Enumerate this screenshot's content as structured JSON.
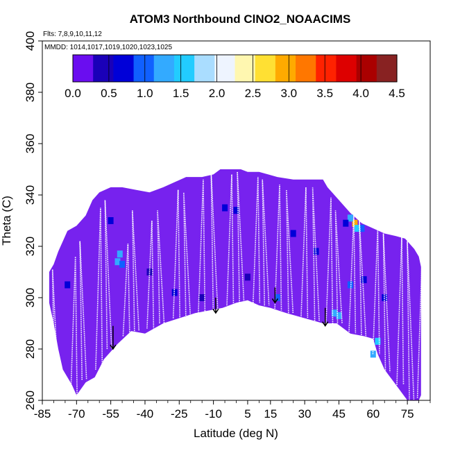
{
  "chart_data": {
    "type": "heatmap",
    "title": "ATOM3 Northbound ClNO2_NOAACIMS",
    "subtitle_flights": "Flts: 7,8,9,10,11,12",
    "subtitle_dates": "MMDD: 1014,1017,1019,1020,1023,1025",
    "xlabel": "Latitude (deg N)",
    "ylabel": "Theta (C)",
    "xlim": [
      -85,
      85
    ],
    "ylim": [
      260,
      400
    ],
    "x_ticks": [
      -85,
      -70,
      -55,
      -40,
      -25,
      -10,
      5,
      15,
      30,
      45,
      60,
      75
    ],
    "y_ticks": [
      260,
      280,
      300,
      320,
      340,
      360,
      380,
      400
    ],
    "colorbar": {
      "min": 0.0,
      "max": 4.5,
      "ticks": [
        "0.0",
        "0.5",
        "1.0",
        "1.5",
        "2.0",
        "2.5",
        "3.0",
        "3.5",
        "4.0",
        "4.5"
      ],
      "colors": [
        "#6a0df0",
        "#1a00b8",
        "#0000d8",
        "#1060ff",
        "#33aaff",
        "#22ccff",
        "#aaddff",
        "#eef4ff",
        "#fff7b0",
        "#ffe033",
        "#ffaa00",
        "#ff7700",
        "#ff2200",
        "#dd0000",
        "#aa0000",
        "#882222"
      ]
    },
    "base_color": "#7722ee",
    "coverage_top": [
      [
        -82,
        310
      ],
      [
        -80,
        313
      ],
      [
        -78,
        318
      ],
      [
        -76,
        322
      ],
      [
        -74,
        326
      ],
      [
        -70,
        328
      ],
      [
        -66,
        332
      ],
      [
        -63,
        338
      ],
      [
        -60,
        341
      ],
      [
        -55,
        343
      ],
      [
        -50,
        343
      ],
      [
        -44,
        342
      ],
      [
        -38,
        341
      ],
      [
        -32,
        343
      ],
      [
        -27,
        345
      ],
      [
        -22,
        347
      ],
      [
        -15,
        347
      ],
      [
        -10,
        348
      ],
      [
        -7,
        350
      ],
      [
        -2,
        350
      ],
      [
        2,
        350
      ],
      [
        5,
        349
      ],
      [
        10,
        349
      ],
      [
        14,
        348
      ],
      [
        18,
        347
      ],
      [
        25,
        346
      ],
      [
        32,
        346
      ],
      [
        38,
        346
      ],
      [
        40,
        343
      ],
      [
        45,
        338
      ],
      [
        50,
        333
      ],
      [
        55,
        329
      ],
      [
        60,
        327
      ],
      [
        65,
        325
      ],
      [
        70,
        324
      ],
      [
        74,
        323
      ],
      [
        78,
        319
      ],
      [
        80,
        316
      ],
      [
        81,
        312
      ]
    ],
    "coverage_bottom": [
      [
        -82,
        298
      ],
      [
        -80,
        290
      ],
      [
        -78,
        280
      ],
      [
        -76,
        272
      ],
      [
        -72,
        266
      ],
      [
        -70,
        262
      ],
      [
        -66,
        267
      ],
      [
        -62,
        269
      ],
      [
        -58,
        276
      ],
      [
        -52,
        282
      ],
      [
        -46,
        287
      ],
      [
        -40,
        286
      ],
      [
        -32,
        290
      ],
      [
        -25,
        292
      ],
      [
        -18,
        294
      ],
      [
        -12,
        295
      ],
      [
        -6,
        296
      ],
      [
        0,
        298
      ],
      [
        5,
        299
      ],
      [
        10,
        297
      ],
      [
        15,
        296
      ],
      [
        22,
        294
      ],
      [
        30,
        292
      ],
      [
        38,
        290
      ],
      [
        44,
        290
      ],
      [
        50,
        286
      ],
      [
        56,
        285
      ],
      [
        60,
        284
      ],
      [
        62,
        278
      ],
      [
        65,
        272
      ],
      [
        70,
        266
      ],
      [
        75,
        260
      ],
      [
        80,
        260
      ],
      [
        81,
        262
      ]
    ],
    "hotspots": [
      {
        "lat": 52,
        "theta": 329,
        "value": 3.0
      },
      {
        "lat": 53,
        "theta": 327,
        "value": 1.5
      },
      {
        "lat": 50,
        "theta": 331,
        "value": 1.2
      },
      {
        "lat": 48,
        "theta": 329,
        "value": 0.8
      },
      {
        "lat": 55,
        "theta": 327,
        "value": 1.0
      },
      {
        "lat": 62,
        "theta": 283,
        "value": 1.6
      },
      {
        "lat": 60,
        "theta": 278,
        "value": 1.4
      },
      {
        "lat": 43,
        "theta": 294,
        "value": 1.3
      },
      {
        "lat": 45,
        "theta": 293,
        "value": 1.2
      },
      {
        "lat": -51,
        "theta": 317,
        "value": 1.4
      },
      {
        "lat": -52,
        "theta": 314,
        "value": 1.2
      },
      {
        "lat": -50,
        "theta": 313,
        "value": 0.9
      },
      {
        "lat": 50,
        "theta": 305,
        "value": 1.0
      },
      {
        "lat": 56,
        "theta": 307,
        "value": 0.8
      },
      {
        "lat": 18,
        "theta": 300,
        "value": 1.0
      },
      {
        "lat": -27,
        "theta": 302,
        "value": 0.7
      },
      {
        "lat": -5,
        "theta": 335,
        "value": 0.6
      },
      {
        "lat": 0,
        "theta": 334,
        "value": 0.7
      },
      {
        "lat": -55,
        "theta": 330,
        "value": 0.7
      },
      {
        "lat": -74,
        "theta": 305,
        "value": 0.7
      },
      {
        "lat": 35,
        "theta": 318,
        "value": 0.6
      },
      {
        "lat": 65,
        "theta": 300,
        "value": 0.6
      },
      {
        "lat": -38,
        "theta": 310,
        "value": 0.5
      },
      {
        "lat": 25,
        "theta": 325,
        "value": 0.6
      },
      {
        "lat": -15,
        "theta": 300,
        "value": 0.5
      },
      {
        "lat": 5,
        "theta": 308,
        "value": 0.5
      }
    ],
    "flight_profiles": [
      {
        "lat": -79.0,
        "theta_min": 260,
        "theta_max": 311
      },
      {
        "lat": -72.0,
        "theta_min": 260,
        "theta_max": 316
      },
      {
        "lat": -67.0,
        "theta_min": 268,
        "theta_max": 322
      },
      {
        "lat": -61.0,
        "theta_min": 272,
        "theta_max": 335
      },
      {
        "lat": -56.0,
        "theta_min": 280,
        "theta_max": 338
      },
      {
        "lat": -49.0,
        "theta_min": 285,
        "theta_max": 321
      },
      {
        "lat": -44.0,
        "theta_min": 287,
        "theta_max": 334
      },
      {
        "lat": -38.5,
        "theta_min": 288,
        "theta_max": 330
      },
      {
        "lat": -33.0,
        "theta_min": 290,
        "theta_max": 334
      },
      {
        "lat": -27.0,
        "theta_min": 292,
        "theta_max": 342
      },
      {
        "lat": -21.5,
        "theta_min": 293,
        "theta_max": 341
      },
      {
        "lat": -16.0,
        "theta_min": 294,
        "theta_max": 346
      },
      {
        "lat": -9.5,
        "theta_min": 295,
        "theta_max": 349
      },
      {
        "lat": -3.5,
        "theta_min": 297,
        "theta_max": 348
      },
      {
        "lat": 2.0,
        "theta_min": 298,
        "theta_max": 349
      },
      {
        "lat": 8.0,
        "theta_min": 298,
        "theta_max": 347
      },
      {
        "lat": 13.0,
        "theta_min": 297,
        "theta_max": 346
      },
      {
        "lat": 17.5,
        "theta_min": 295,
        "theta_max": 344
      },
      {
        "lat": 23.5,
        "theta_min": 294,
        "theta_max": 342
      },
      {
        "lat": 29.0,
        "theta_min": 292,
        "theta_max": 343
      },
      {
        "lat": 35.0,
        "theta_min": 291,
        "theta_max": 343
      },
      {
        "lat": 40.0,
        "theta_min": 290,
        "theta_max": 339
      },
      {
        "lat": 45.0,
        "theta_min": 290,
        "theta_max": 334
      },
      {
        "lat": 50.0,
        "theta_min": 286,
        "theta_max": 332
      },
      {
        "lat": 55.5,
        "theta_min": 284,
        "theta_max": 330
      },
      {
        "lat": 60.5,
        "theta_min": 278,
        "theta_max": 327
      },
      {
        "lat": 66.0,
        "theta_min": 271,
        "theta_max": 325
      },
      {
        "lat": 71.0,
        "theta_min": 266,
        "theta_max": 324
      },
      {
        "lat": 76.5,
        "theta_min": 260,
        "theta_max": 322
      },
      {
        "lat": 80.0,
        "theta_min": 261,
        "theta_max": 318
      }
    ],
    "takeoff_arrows": [
      {
        "lat": -54,
        "theta_from": 289,
        "theta_to": 280
      },
      {
        "lat": -9,
        "theta_from": 300,
        "theta_to": 294
      },
      {
        "lat": 17,
        "theta_from": 304,
        "theta_to": 298
      },
      {
        "lat": 39,
        "theta_from": 296,
        "theta_to": 289
      }
    ]
  }
}
